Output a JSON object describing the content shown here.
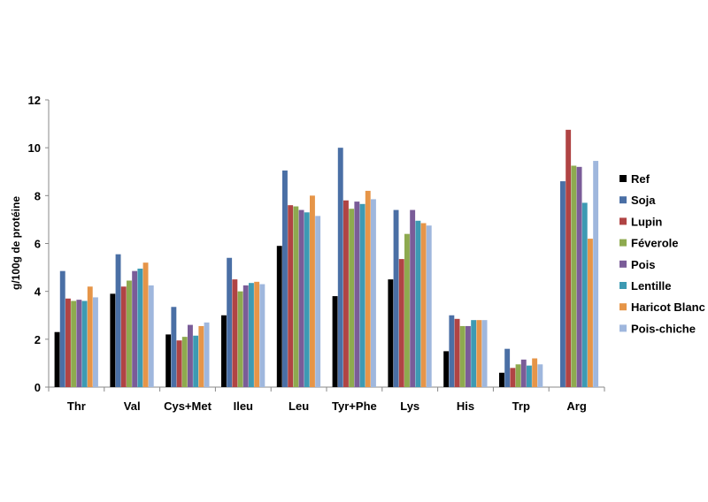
{
  "chart_data": {
    "type": "bar",
    "title": "",
    "xlabel": "",
    "ylabel": "g/100g de protéine",
    "ylim": [
      0,
      12
    ],
    "yticks": [
      0,
      2,
      4,
      6,
      8,
      10,
      12
    ],
    "grid": false,
    "legend_position": "right",
    "categories": [
      "Thr",
      "Val",
      "Cys+Met",
      "Ileu",
      "Leu",
      "Tyr+Phe",
      "Lys",
      "His",
      "Trp",
      "Arg"
    ],
    "series": [
      {
        "name": "Ref",
        "color": "#000000",
        "values": [
          2.3,
          3.9,
          2.2,
          3.0,
          5.9,
          3.8,
          4.5,
          1.5,
          0.6,
          null
        ]
      },
      {
        "name": "Soja",
        "color": "#4a6fa5",
        "values": [
          4.85,
          5.55,
          3.35,
          5.4,
          9.05,
          10.0,
          7.4,
          3.0,
          1.6,
          8.6
        ]
      },
      {
        "name": "Lupin",
        "color": "#b04444",
        "values": [
          3.7,
          4.2,
          1.95,
          4.5,
          7.6,
          7.8,
          5.35,
          2.85,
          0.8,
          10.75
        ]
      },
      {
        "name": "Féverole",
        "color": "#8eaa4f",
        "values": [
          3.6,
          4.45,
          2.1,
          4.0,
          7.55,
          7.45,
          6.4,
          2.55,
          0.95,
          9.25
        ]
      },
      {
        "name": "Pois",
        "color": "#7a5c98",
        "values": [
          3.65,
          4.85,
          2.6,
          4.25,
          7.4,
          7.75,
          7.4,
          2.55,
          1.15,
          9.2
        ]
      },
      {
        "name": "Lentille",
        "color": "#3d9ab3",
        "values": [
          3.6,
          4.95,
          2.15,
          4.35,
          7.3,
          7.65,
          6.95,
          2.8,
          0.9,
          7.7
        ]
      },
      {
        "name": "Haricot Blanc",
        "color": "#e69548",
        "values": [
          4.2,
          5.2,
          2.55,
          4.4,
          8.0,
          8.2,
          6.85,
          2.8,
          1.2,
          6.2
        ]
      },
      {
        "name": "Pois-chiche",
        "color": "#9fb7dd",
        "values": [
          3.75,
          4.25,
          2.7,
          4.3,
          7.15,
          7.85,
          6.75,
          2.8,
          0.95,
          9.45
        ]
      }
    ]
  }
}
